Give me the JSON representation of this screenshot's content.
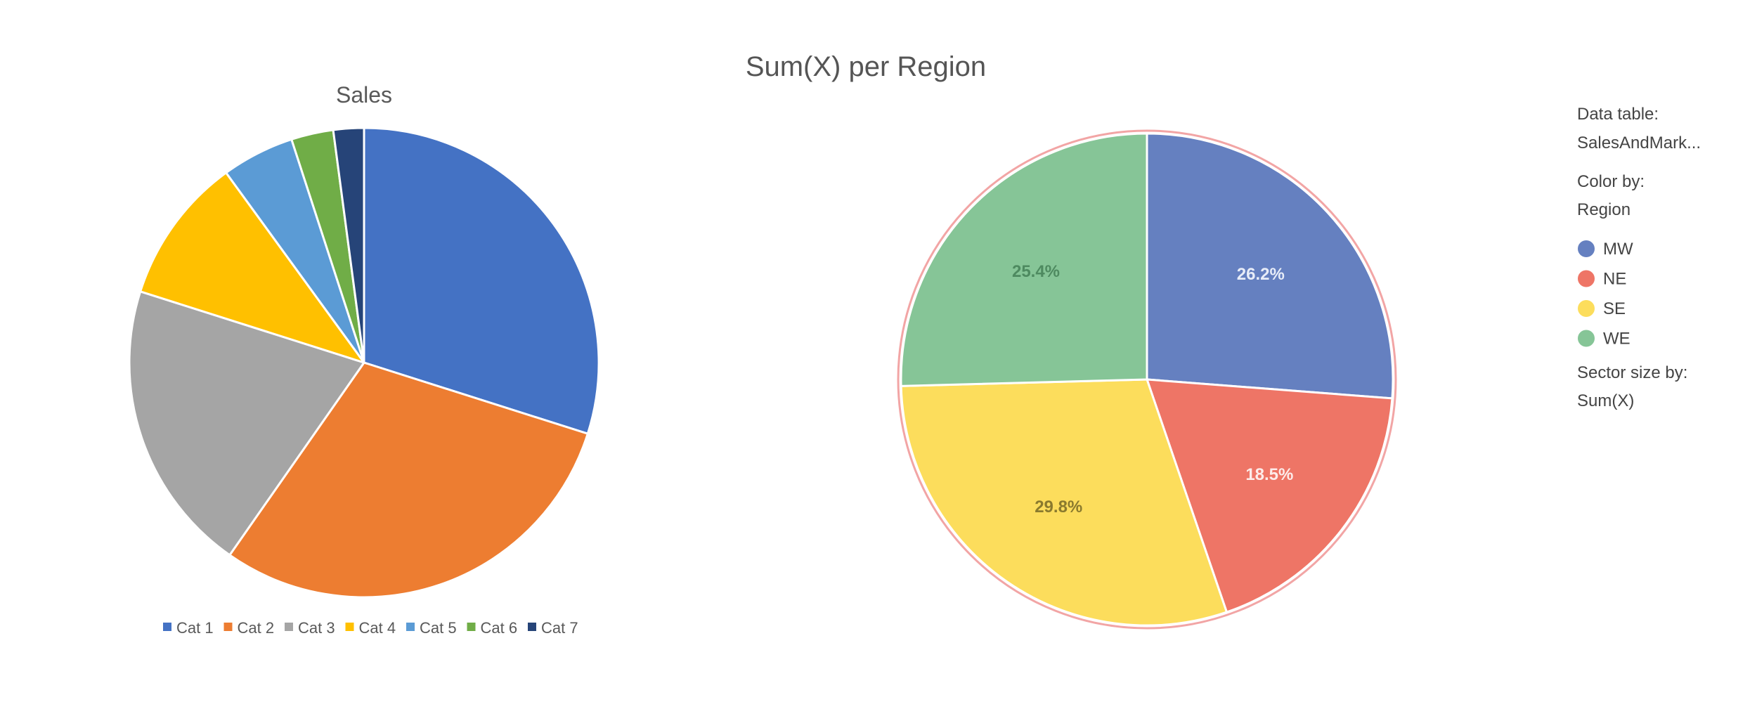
{
  "chart_data": [
    {
      "type": "pie",
      "title": "Sales",
      "categories": [
        "Cat 1",
        "Cat 2",
        "Cat 3",
        "Cat 4",
        "Cat 5",
        "Cat 6",
        "Cat 7"
      ],
      "values": [
        29.9,
        29.8,
        20.2,
        10.1,
        5.0,
        2.9,
        2.1
      ],
      "colors": [
        "#4472C4",
        "#ED7D31",
        "#A5A5A5",
        "#FFC000",
        "#5B9BD5",
        "#70AD47",
        "#264478"
      ],
      "legend": "bottom",
      "data_labels": false
    },
    {
      "type": "pie",
      "title": "Sum(X) per Region",
      "categories": [
        "MW",
        "NE",
        "SE",
        "WE"
      ],
      "values": [
        26.2,
        18.5,
        29.8,
        25.4
      ],
      "labels": [
        "26.2%",
        "18.5%",
        "29.8%",
        "25.4%"
      ],
      "colors": [
        "#6580C0",
        "#EE7566",
        "#FCDD5C",
        "#86C597"
      ],
      "label_colors": [
        "#E8EDF8",
        "#FDECEA",
        "#8A7A2E",
        "#4E8A60"
      ],
      "legend": "right",
      "data_labels": true
    }
  ],
  "side_panel": {
    "data_table_label": "Data table:",
    "data_table_value": "SalesAndMark...",
    "color_by_label": "Color by:",
    "color_by_value": "Region",
    "sector_size_label": "Sector size by:",
    "sector_size_value": "Sum(X)"
  }
}
